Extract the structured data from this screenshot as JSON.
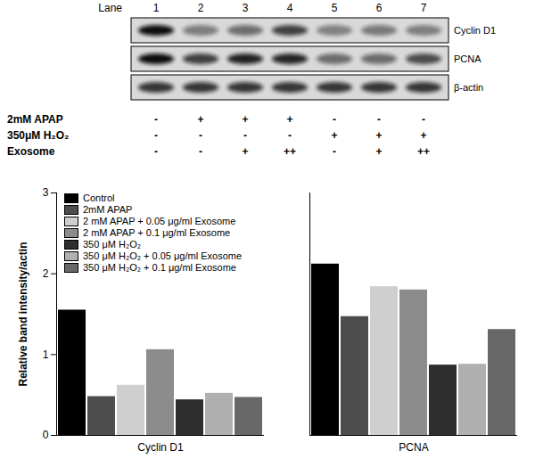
{
  "blot": {
    "lane_header": "Lane",
    "lanes": [
      "1",
      "2",
      "3",
      "4",
      "5",
      "6",
      "7"
    ],
    "proteins": [
      "Cyclin D1",
      "PCNA",
      "β-actin"
    ],
    "treatments": [
      {
        "label": "2mM APAP",
        "marks": [
          "-",
          "+",
          "+",
          "+",
          "-",
          "-",
          "-"
        ]
      },
      {
        "label": "350μM H₂O₂",
        "marks": [
          "-",
          "-",
          "-",
          "-",
          "+",
          "+",
          "+"
        ]
      },
      {
        "label": "Exosome",
        "marks": [
          "-",
          "-",
          "+",
          "++",
          "-",
          "+",
          "++"
        ]
      }
    ]
  },
  "chart_data": {
    "type": "bar",
    "ylabel": "Relative band intensity/actin",
    "categories": [
      "Cyclin D1",
      "PCNA"
    ],
    "series": [
      {
        "name": "Control",
        "color": "#000000",
        "values": [
          1.55,
          2.12
        ]
      },
      {
        "name": "2mM APAP",
        "color": "#4d4d4d",
        "values": [
          0.48,
          1.47
        ]
      },
      {
        "name": "2 mM APAP + 0.05 μg/ml Exosome",
        "color": "#cfcfcf",
        "values": [
          0.62,
          1.84
        ]
      },
      {
        "name": "2 mM APAP + 0.1 μg/ml Exosome",
        "color": "#8c8c8c",
        "values": [
          1.06,
          1.8
        ]
      },
      {
        "name": "350 μM H₂O₂",
        "color": "#2e2e2e",
        "values": [
          0.44,
          0.87
        ]
      },
      {
        "name": "350 μM H₂O₂ + 0.05 μg/ml Exosome",
        "color": "#b0b0b0",
        "values": [
          0.52,
          0.88
        ]
      },
      {
        "name": "350 μM H₂O₂ + 0.1 μg/ml Exosome",
        "color": "#686868",
        "values": [
          0.47,
          1.31
        ]
      }
    ],
    "ylim": [
      0,
      3
    ],
    "yticks": [
      0,
      1,
      2,
      3
    ],
    "legend": "top-left"
  }
}
